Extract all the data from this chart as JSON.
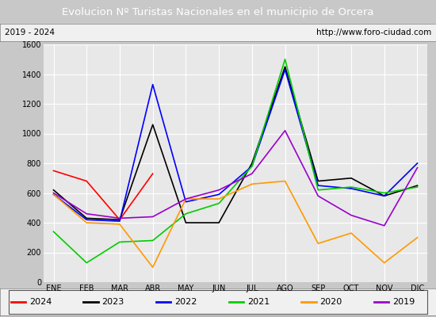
{
  "title": "Evolucion Nº Turistas Nacionales en el municipio de Orcera",
  "subtitle_left": "2019 - 2024",
  "subtitle_right": "http://www.foro-ciudad.com",
  "months": [
    "ENE",
    "FEB",
    "MAR",
    "ABR",
    "MAY",
    "JUN",
    "JUL",
    "AGO",
    "SEP",
    "OCT",
    "NOV",
    "DIC"
  ],
  "series": {
    "2024": {
      "color": "#ff0000",
      "data": [
        750,
        680,
        420,
        730,
        null,
        null,
        null,
        null,
        null,
        null,
        null,
        null
      ]
    },
    "2023": {
      "color": "#000000",
      "data": [
        620,
        430,
        420,
        1060,
        400,
        400,
        800,
        1450,
        680,
        700,
        580,
        650
      ]
    },
    "2022": {
      "color": "#0000ff",
      "data": [
        590,
        420,
        410,
        1330,
        540,
        590,
        780,
        1430,
        650,
        630,
        580,
        800
      ]
    },
    "2021": {
      "color": "#00cc00",
      "data": [
        340,
        130,
        270,
        280,
        460,
        530,
        780,
        1500,
        620,
        640,
        600,
        640
      ]
    },
    "2020": {
      "color": "#ff9900",
      "data": [
        590,
        400,
        390,
        100,
        560,
        560,
        660,
        680,
        260,
        330,
        130,
        300
      ]
    },
    "2019": {
      "color": "#9900cc",
      "data": [
        600,
        460,
        430,
        440,
        560,
        620,
        730,
        1020,
        580,
        450,
        380,
        770
      ]
    }
  },
  "ylim": [
    0,
    1600
  ],
  "yticks": [
    0,
    200,
    400,
    600,
    800,
    1000,
    1200,
    1400,
    1600
  ],
  "title_bg_color": "#4472c4",
  "title_text_color": "#ffffff",
  "plot_bg_color": "#e8e8e8",
  "grid_color": "#ffffff",
  "outer_bg_color": "#c8c8c8",
  "legend_order": [
    "2024",
    "2023",
    "2022",
    "2021",
    "2020",
    "2019"
  ]
}
